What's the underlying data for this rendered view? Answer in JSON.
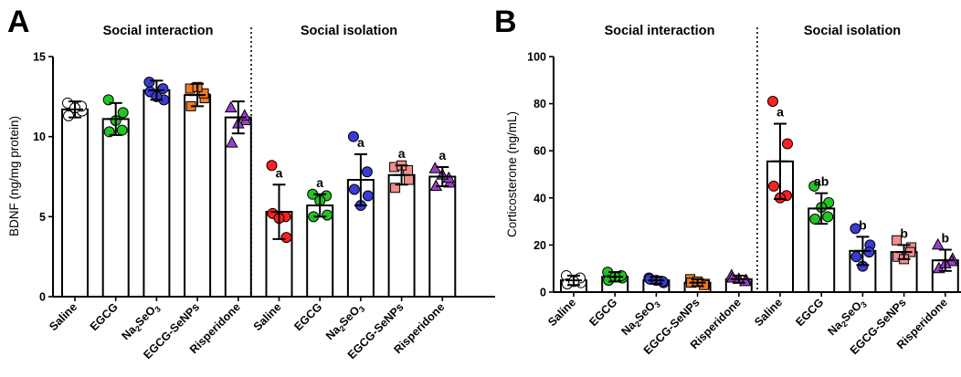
{
  "panels": [
    {
      "letter": "A",
      "group_titles": [
        "Social interaction",
        "Social isolation"
      ]
    },
    {
      "letter": "B",
      "group_titles": [
        "Social interaction",
        "Social isolation"
      ]
    }
  ],
  "colors": {
    "Saline": "#ffffff",
    "Saline-isolation": "#ff2020",
    "EGCG": "#22c422",
    "Na2SeO3": "#3b3bd6",
    "EGCG-SeNPs": "#f07a22",
    "EGCG-SeNPs-isolation": "#f08d8d",
    "Risperidone": "#9b3fc8"
  },
  "chart_data": [
    {
      "type": "bar",
      "ylabel": "BDNF (ng/mg protein)",
      "ylim": [
        0,
        15
      ],
      "yticks": [
        0,
        5,
        10,
        15
      ],
      "groups": [
        "Social interaction",
        "Social isolation"
      ],
      "categories": [
        "Saline",
        "EGCG",
        "Na2SeO3",
        "EGCG-SeNPs",
        "Risperidone",
        "Saline",
        "EGCG",
        "Na2SeO3",
        "EGCG-SeNPs",
        "Risperidone"
      ],
      "values": [
        11.7,
        11.1,
        12.9,
        12.6,
        11.2,
        5.3,
        5.7,
        7.3,
        7.6,
        7.5
      ],
      "errors": [
        0.5,
        1.0,
        0.6,
        0.7,
        1.0,
        1.7,
        0.7,
        1.6,
        0.6,
        0.6
      ],
      "annotations": [
        "",
        "",
        "",
        "",
        "",
        "a",
        "a",
        "a",
        "a",
        "a"
      ],
      "points": [
        [
          12.1,
          11.6,
          11.3,
          11.9,
          11.8
        ],
        [
          12.3,
          11.5,
          10.3,
          10.4,
          11.0
        ],
        [
          13.4,
          12.3,
          12.8,
          13.0,
          12.5
        ],
        [
          13.0,
          12.4,
          11.9,
          12.7,
          13.1
        ],
        [
          11.8,
          11.0,
          9.6,
          11.3,
          10.8
        ],
        [
          8.2,
          3.7,
          5.2,
          5.0,
          4.9
        ],
        [
          6.4,
          5.1,
          5.0,
          6.3,
          6.0
        ],
        [
          10.0,
          6.3,
          6.7,
          7.8,
          5.7
        ],
        [
          8.1,
          7.3,
          6.8,
          7.9,
          8.2
        ],
        [
          8.0,
          7.1,
          6.9,
          7.4,
          7.6
        ]
      ],
      "marker": [
        "circle",
        "circle",
        "circle",
        "square",
        "triangle",
        "circle",
        "circle",
        "circle",
        "square",
        "triangle"
      ],
      "point_fill": [
        "Saline",
        "EGCG",
        "Na2SeO3",
        "EGCG-SeNPs",
        "Risperidone",
        "Saline-isolation",
        "EGCG",
        "Na2SeO3",
        "EGCG-SeNPs-isolation",
        "Risperidone"
      ],
      "tick_labels": [
        {
          "main": "Saline"
        },
        {
          "main": "EGCG"
        },
        {
          "main": "Na",
          "sub": "2",
          "after": "SeO",
          "sub2": "3"
        },
        {
          "main": "EGCG-SeNPs"
        },
        {
          "main": "Risperidone"
        },
        {
          "main": "Saline"
        },
        {
          "main": "EGCG"
        },
        {
          "main": "Na",
          "sub": "2",
          "after": "SeO",
          "sub2": "3"
        },
        {
          "main": "EGCG-SeNPs"
        },
        {
          "main": "Risperidone"
        }
      ]
    },
    {
      "type": "bar",
      "ylabel": "Corticosterone (ng/mL)",
      "ylim": [
        0,
        100
      ],
      "yticks": [
        0,
        20,
        40,
        60,
        80,
        100
      ],
      "groups": [
        "Social interaction",
        "Social isolation"
      ],
      "categories": [
        "Saline",
        "EGCG",
        "Na2SeO3",
        "EGCG-SeNPs",
        "Risperidone",
        "Saline",
        "EGCG",
        "Na2SeO3",
        "EGCG-SeNPs",
        "Risperidone"
      ],
      "values": [
        5.0,
        6.5,
        5.0,
        4.0,
        5.5,
        55.5,
        35.5,
        17.5,
        17.0,
        13.5
      ],
      "errors": [
        2.0,
        2.0,
        1.5,
        1.5,
        1.5,
        16.0,
        6.5,
        6.0,
        3.0,
        4.5
      ],
      "annotations": [
        "",
        "",
        "",
        "",
        "",
        "a",
        "ab",
        "b",
        "b",
        "b"
      ],
      "points": [
        [
          7.0,
          4.0,
          3.5,
          6.0,
          4.5
        ],
        [
          8.5,
          6.0,
          5.0,
          7.0,
          6.5
        ],
        [
          6.0,
          4.0,
          5.5,
          4.5,
          5.0
        ],
        [
          5.5,
          3.5,
          4.0,
          3.0,
          4.5
        ],
        [
          7.0,
          5.0,
          6.0,
          4.5,
          5.5
        ],
        [
          81.0,
          63.0,
          45.0,
          41.0,
          40.0
        ],
        [
          45.0,
          38.0,
          31.0,
          32.0,
          36.0
        ],
        [
          27.0,
          20.0,
          15.0,
          17.0,
          11.0
        ],
        [
          22.0,
          19.0,
          15.0,
          17.0,
          14.0
        ],
        [
          20.0,
          14.0,
          10.0,
          13.0,
          12.0
        ]
      ],
      "marker": [
        "circle",
        "circle",
        "circle",
        "square",
        "triangle",
        "circle",
        "circle",
        "circle",
        "square",
        "triangle"
      ],
      "point_fill": [
        "Saline",
        "EGCG",
        "Na2SeO3",
        "EGCG-SeNPs",
        "Risperidone",
        "Saline-isolation",
        "EGCG",
        "Na2SeO3",
        "EGCG-SeNPs-isolation",
        "Risperidone"
      ],
      "tick_labels": [
        {
          "main": "Saline"
        },
        {
          "main": "EGCG"
        },
        {
          "main": "Na",
          "sub": "2",
          "after": "SeO",
          "sub2": "3"
        },
        {
          "main": "EGCG-SeNPs"
        },
        {
          "main": "Risperidone"
        },
        {
          "main": "Saline"
        },
        {
          "main": "EGCG"
        },
        {
          "main": "Na",
          "sub": "2",
          "after": "SeO",
          "sub2": "3"
        },
        {
          "main": "EGCG-SeNPs"
        },
        {
          "main": "Risperidone"
        }
      ]
    }
  ]
}
